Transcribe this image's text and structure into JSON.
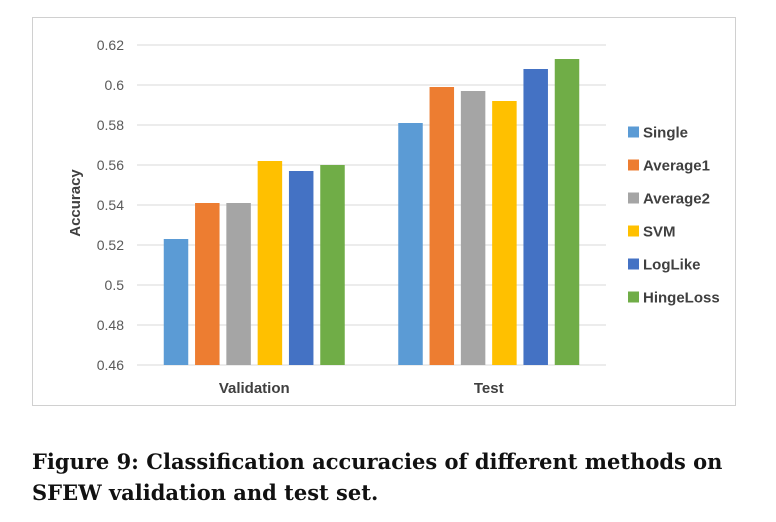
{
  "chart_data": {
    "type": "bar",
    "categories": [
      "Validation",
      "Test"
    ],
    "series": [
      {
        "name": "Single",
        "color": "#5b9bd5",
        "values": [
          0.523,
          0.581
        ]
      },
      {
        "name": "Average1",
        "color": "#ed7d31",
        "values": [
          0.541,
          0.599
        ]
      },
      {
        "name": "Average2",
        "color": "#a5a5a5",
        "values": [
          0.541,
          0.597
        ]
      },
      {
        "name": "SVM",
        "color": "#ffc000",
        "values": [
          0.562,
          0.592
        ]
      },
      {
        "name": "LogLike",
        "color": "#4472c4",
        "values": [
          0.557,
          0.608
        ]
      },
      {
        "name": "HingeLoss",
        "color": "#70ad47",
        "values": [
          0.56,
          0.613
        ]
      }
    ],
    "title": "",
    "xlabel": "",
    "ylabel": "Accuracy",
    "ylim": [
      0.46,
      0.62
    ],
    "yticks": [
      "0.62",
      "0.6",
      "0.58",
      "0.56",
      "0.54",
      "0.52",
      "0.5",
      "0.48",
      "0.46"
    ],
    "grid": true,
    "legend_position": "right"
  },
  "caption": "Figure 9: Classification accuracies of different methods on SFEW validation and test set."
}
